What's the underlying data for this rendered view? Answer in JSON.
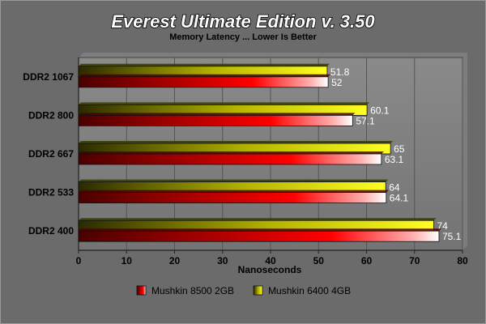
{
  "chart_data": {
    "type": "bar",
    "orientation": "horizontal",
    "title": "Everest Ultimate Edition v. 3.50",
    "subtitle": "Memory Latency ... Lower Is Better",
    "xlabel": "Nanoseconds",
    "ylabel": "",
    "xlim": [
      0,
      80
    ],
    "xticks": [
      0,
      10,
      20,
      30,
      40,
      50,
      60,
      70,
      80
    ],
    "grid": true,
    "legend_position": "bottom",
    "categories": [
      "DDR2 1067",
      "DDR2 800",
      "DDR2 667",
      "DDR2 533",
      "DDR2 400"
    ],
    "series": [
      {
        "name": "Mushkin 6400 4GB",
        "color": "#ffff00",
        "values": [
          51.8,
          60.1,
          65,
          64,
          74
        ]
      },
      {
        "name": "Mushkin 8500 2GB",
        "color": "#ff0000",
        "values": [
          52,
          57.1,
          63.1,
          64.1,
          75.1
        ]
      }
    ],
    "legend_order": [
      1,
      0
    ]
  }
}
